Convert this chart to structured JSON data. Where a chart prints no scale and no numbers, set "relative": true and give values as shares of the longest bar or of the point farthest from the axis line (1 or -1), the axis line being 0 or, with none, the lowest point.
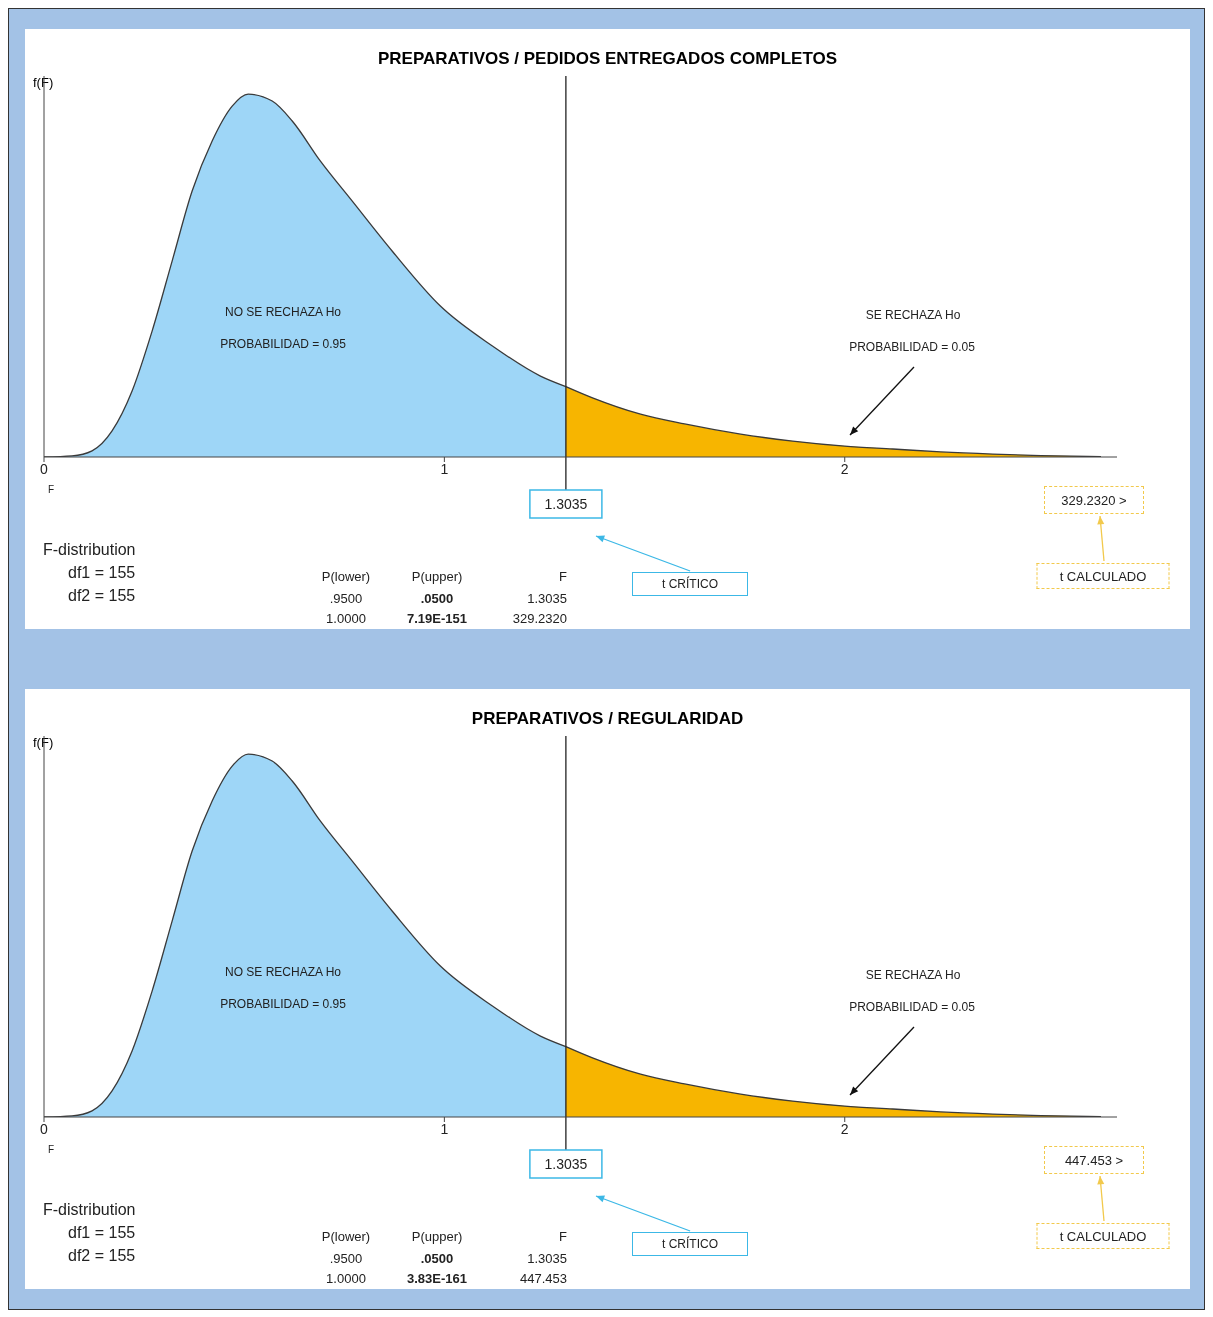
{
  "chart_data": [
    {
      "type": "area",
      "title": "PREPARATIVOS / PEDIDOS ENTREGADOS COMPLETOS",
      "xlabel": "F",
      "ylabel": "f(F)",
      "relative": true,
      "xlim": [
        0,
        2.68
      ],
      "xticks": [
        0,
        1,
        2
      ],
      "marker": "none",
      "series": [
        {
          "color": "#9ed6f7",
          "x": [
            0,
            0.07,
            0.12,
            0.17,
            0.22,
            0.27,
            0.32,
            0.37,
            0.42,
            0.47,
            0.51,
            0.57,
            0.62,
            0.69,
            0.77,
            0.87,
            0.99,
            1.12,
            1.24,
            1.3035
          ],
          "values": [
            0,
            0.003,
            0.017,
            0.072,
            0.182,
            0.347,
            0.54,
            0.733,
            0.871,
            0.967,
            1,
            0.981,
            0.926,
            0.816,
            0.705,
            0.567,
            0.416,
            0.306,
            0.223,
            0.194
          ]
        },
        {
          "color": "#f7b500",
          "x": [
            1.3035,
            1.37,
            1.49,
            1.6,
            1.74,
            1.87,
            2.0,
            2.12,
            2.24,
            2.37,
            2.49,
            2.64
          ],
          "values": [
            0.194,
            0.163,
            0.118,
            0.091,
            0.063,
            0.044,
            0.03,
            0.022,
            0.014,
            0.008,
            0.004,
            0.001
          ]
        }
      ],
      "ref_lines": [
        {
          "axis": "x",
          "value": 1.3035,
          "label": "1.3035",
          "color": "#222222"
        }
      ],
      "annotations": [
        "NO SE RECHAZA Ho",
        "PROBABILIDAD = 0.95",
        "SE RECHAZA Ho",
        "PROBABILIDAD = 0.05",
        "t CRÍTICO",
        "329.2320 >",
        "t CALCULADO",
        "F-distribution",
        "df1 = 155",
        "df2 = 155",
        "P(lower)",
        "P(upper)",
        "F",
        ".9500",
        ".0500",
        "1.3035",
        "1.0000",
        "7.19E-151",
        "329.2320"
      ]
    },
    {
      "type": "area",
      "title": "PREPARATIVOS / REGULARIDAD",
      "xlabel": "F",
      "ylabel": "f(F)",
      "relative": true,
      "xlim": [
        0,
        2.68
      ],
      "xticks": [
        0,
        1,
        2
      ],
      "marker": "none",
      "series": [
        {
          "color": "#9ed6f7",
          "x": [
            0,
            0.07,
            0.12,
            0.17,
            0.22,
            0.27,
            0.32,
            0.37,
            0.42,
            0.47,
            0.51,
            0.57,
            0.62,
            0.69,
            0.77,
            0.87,
            0.99,
            1.12,
            1.24,
            1.3035
          ],
          "values": [
            0,
            0.003,
            0.017,
            0.072,
            0.182,
            0.347,
            0.54,
            0.733,
            0.871,
            0.967,
            1,
            0.981,
            0.926,
            0.816,
            0.705,
            0.567,
            0.416,
            0.306,
            0.223,
            0.194
          ]
        },
        {
          "color": "#f7b500",
          "x": [
            1.3035,
            1.37,
            1.49,
            1.6,
            1.74,
            1.87,
            2.0,
            2.12,
            2.24,
            2.37,
            2.49,
            2.64
          ],
          "values": [
            0.194,
            0.163,
            0.118,
            0.091,
            0.063,
            0.044,
            0.03,
            0.022,
            0.014,
            0.008,
            0.004,
            0.001
          ]
        }
      ],
      "ref_lines": [
        {
          "axis": "x",
          "value": 1.3035,
          "label": "1.3035",
          "color": "#222222"
        }
      ],
      "annotations": [
        "NO SE RECHAZA Ho",
        "PROBABILIDAD = 0.95",
        "SE RECHAZA Ho",
        "PROBABILIDAD = 0.05",
        "t CRÍTICO",
        "447.453 >",
        "t CALCULADO",
        "F-distribution",
        "df1 = 155",
        "df2 = 155",
        "P(lower)",
        "P(upper)",
        "F",
        ".9500",
        ".0500",
        "1.3035",
        "1.0000",
        "3.83E-161",
        "447.453"
      ]
    }
  ]
}
